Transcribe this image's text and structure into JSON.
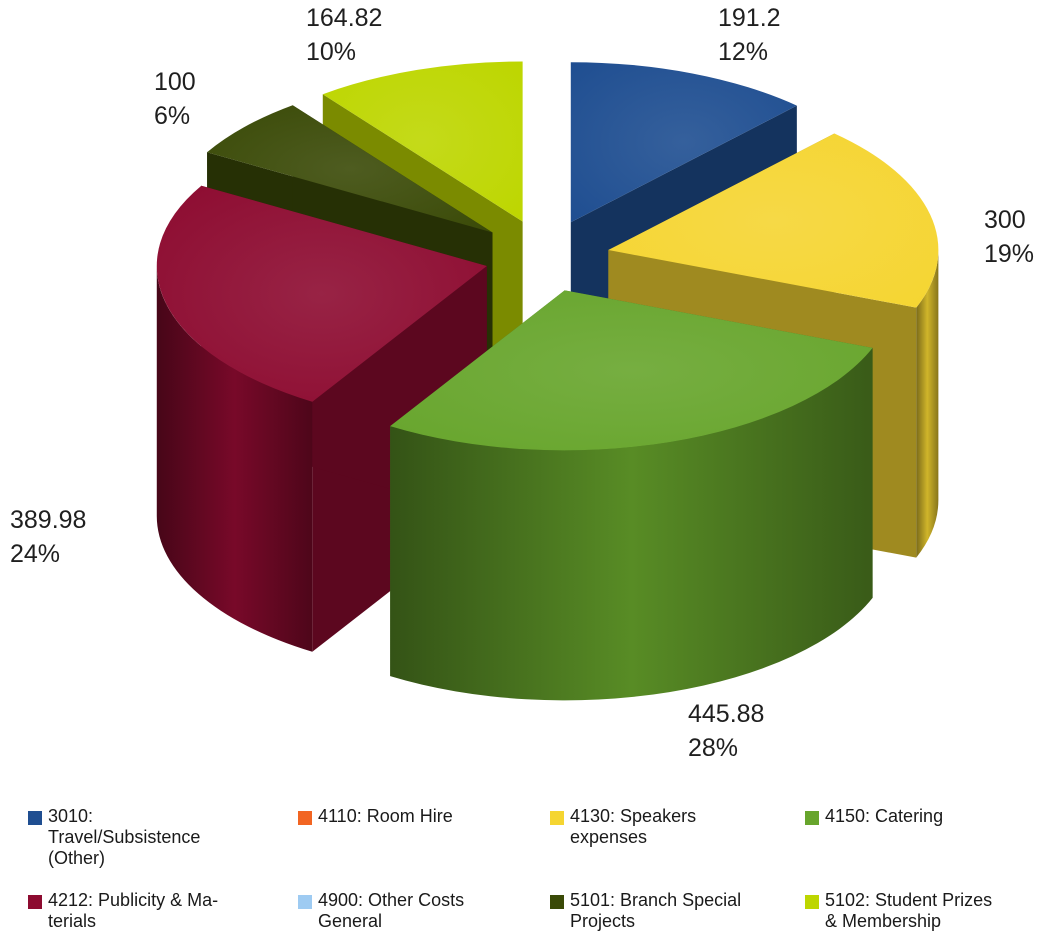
{
  "chart_data": {
    "type": "pie",
    "style": "3d-exploded",
    "title": "",
    "slices": [
      {
        "category": "3010: Travel/Subsistence (Other)",
        "value": 191.2,
        "percent": "12%",
        "value_label": "191.2",
        "color": "#1f4e91"
      },
      {
        "category": "4110: Room Hire",
        "value": 0,
        "percent": "",
        "value_label": "",
        "color": "#f26522"
      },
      {
        "category": "4130: Speakers expenses",
        "value": 300,
        "percent": "19%",
        "value_label": "300",
        "color": "#f5d531"
      },
      {
        "category": "4150: Catering",
        "value": 445.88,
        "percent": "28%",
        "value_label": "445.88",
        "color": "#67a52c"
      },
      {
        "category": "4212: Publicity & Materials",
        "value": 389.98,
        "percent": "24%",
        "value_label": "389.98",
        "color": "#8d0b30"
      },
      {
        "category": "4900: Other Costs General",
        "value": 0,
        "percent": "",
        "value_label": "",
        "color": "#9ecbf2"
      },
      {
        "category": "5101: Branch Special Projects",
        "value": 100,
        "percent": "6%",
        "value_label": "100",
        "color": "#3a4a07"
      },
      {
        "category": "5102: Student Prizes & Membership",
        "value": 164.82,
        "percent": "10%",
        "value_label": "164.82",
        "color": "#bdd600"
      }
    ],
    "legend": {
      "placement": "bottom",
      "entries": [
        {
          "label": "3010:\nTravel/Subsistence\n(Other)",
          "color": "#1f4e91"
        },
        {
          "label": "4110: Room Hire",
          "color": "#f26522"
        },
        {
          "label": "4130: Speakers\nexpenses",
          "color": "#f5d531"
        },
        {
          "label": "4150: Catering",
          "color": "#67a52c"
        },
        {
          "label": "4212: Publicity & Ma-\nterials",
          "color": "#8d0b30"
        },
        {
          "label": "4900: Other Costs\nGeneral",
          "color": "#9ecbf2"
        },
        {
          "label": "5101: Branch Special\nProjects",
          "color": "#3a4a07"
        },
        {
          "label": "5102: Student Prizes\n& Membership",
          "color": "#bdd600"
        }
      ]
    }
  }
}
